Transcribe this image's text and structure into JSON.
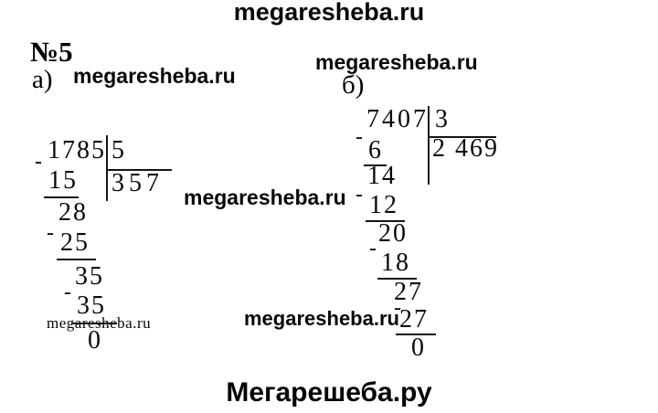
{
  "watermarks": {
    "top": "megaresheba.ru",
    "near_a": "megaresheba.ru",
    "near_b": "megaresheba.ru",
    "center": "megaresheba.ru",
    "bottom_small": "megaresheba.ru",
    "bottom_bold": "megaresheba.ru",
    "footer": "Мегарешеба.ру"
  },
  "exercise": {
    "number": "№5",
    "part_a_label": "а)",
    "part_b_label": "б)"
  },
  "glyphs": {
    "minus": "-"
  },
  "division_a": {
    "dividend": "1785",
    "divisor": "5",
    "quotient": "357",
    "sub1": "15",
    "rem1": "28",
    "sub2": "25",
    "rem2": "35",
    "sub3": "35",
    "remainder": "0"
  },
  "division_b": {
    "dividend": "7407",
    "divisor": "3",
    "quotient": "2 469",
    "sub1": "6",
    "rem1": "14",
    "sub2": "12",
    "rem2": "20",
    "sub3": "18",
    "rem3": "27",
    "sub4": "27",
    "remainder": "0"
  }
}
